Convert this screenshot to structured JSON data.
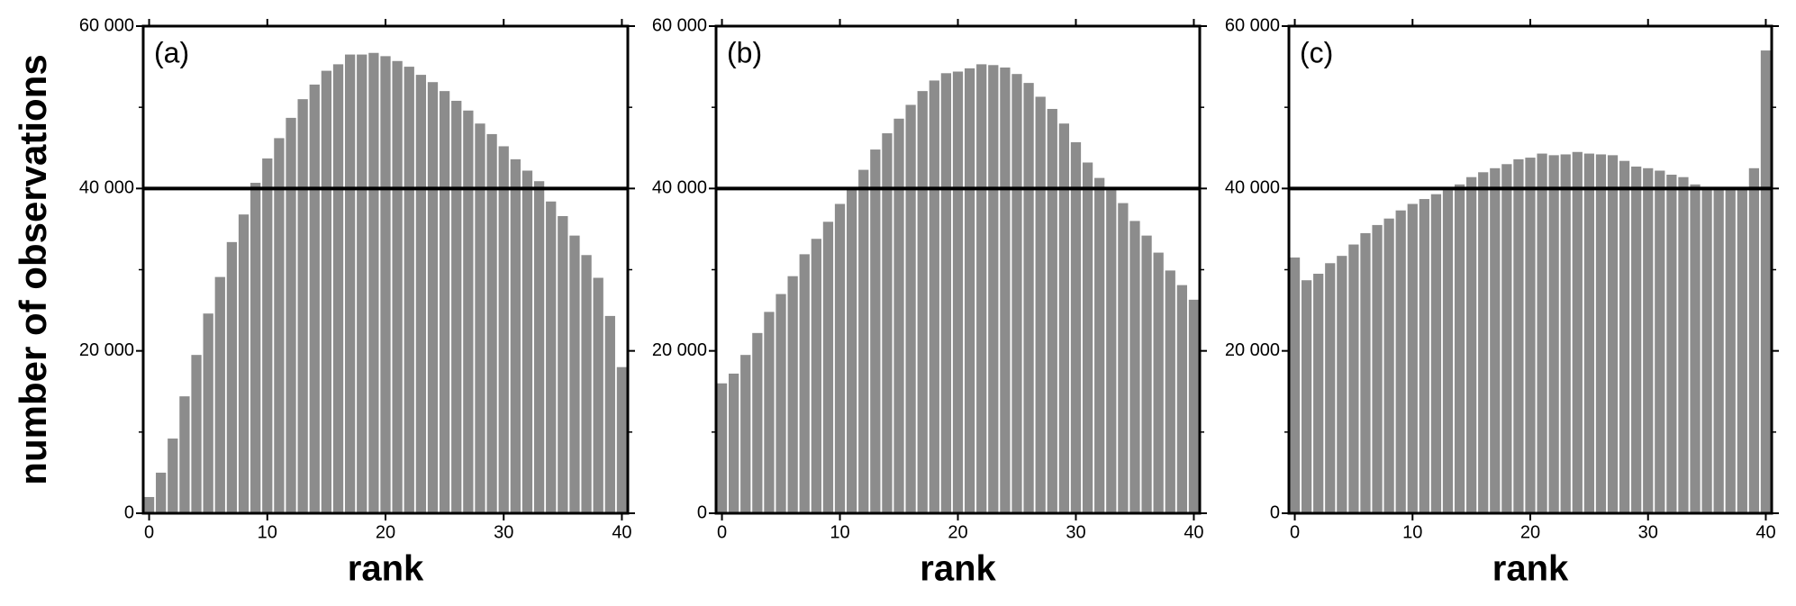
{
  "chart_data": [
    {
      "type": "bar",
      "annotation": "(a)",
      "ylabel": "number of observations",
      "xlabel": "rank",
      "x": [
        0,
        1,
        2,
        3,
        4,
        5,
        6,
        7,
        8,
        9,
        10,
        11,
        12,
        13,
        14,
        15,
        16,
        17,
        18,
        19,
        20,
        21,
        22,
        23,
        24,
        25,
        26,
        27,
        28,
        29,
        30,
        31,
        32,
        33,
        34,
        35,
        36,
        37,
        38,
        39,
        40
      ],
      "values": [
        2000,
        5000,
        9200,
        14400,
        19500,
        24600,
        29100,
        33400,
        36800,
        40700,
        43700,
        46200,
        48700,
        51000,
        52800,
        54500,
        55300,
        56500,
        56500,
        56700,
        56300,
        55700,
        55000,
        54000,
        53100,
        52000,
        50800,
        49600,
        48000,
        46700,
        45200,
        43600,
        42200,
        40900,
        38400,
        36600,
        34200,
        31800,
        29000,
        24300,
        18000
      ],
      "color": "#8c8c8c",
      "hline": 40000,
      "xlim": [
        -0.5,
        40.5
      ],
      "xticks": [
        0,
        10,
        20,
        30,
        40
      ],
      "ylim": [
        0,
        60000
      ],
      "yticks": [
        0,
        {
          "value": 20000,
          "label": "20 000"
        },
        {
          "value": 40000,
          "label": "40 000"
        },
        {
          "value": 60000,
          "label": "60 000"
        }
      ]
    },
    {
      "type": "bar",
      "annotation": "(b)",
      "xlabel": "rank",
      "x": [
        0,
        1,
        2,
        3,
        4,
        5,
        6,
        7,
        8,
        9,
        10,
        11,
        12,
        13,
        14,
        15,
        16,
        17,
        18,
        19,
        20,
        21,
        22,
        23,
        24,
        25,
        26,
        27,
        28,
        29,
        30,
        31,
        32,
        33,
        34,
        35,
        36,
        37,
        38,
        39,
        40
      ],
      "values": [
        16000,
        17200,
        19500,
        22200,
        24800,
        27000,
        29200,
        31900,
        33800,
        35900,
        38100,
        40200,
        42300,
        44800,
        46800,
        48600,
        50300,
        52000,
        53300,
        54200,
        54400,
        54800,
        55300,
        55200,
        54900,
        54100,
        53000,
        51300,
        49800,
        48000,
        45700,
        43200,
        41300,
        39800,
        38200,
        36000,
        34200,
        32100,
        29900,
        28100,
        26300
      ],
      "color": "#8c8c8c",
      "hline": 40000,
      "xlim": [
        -0.5,
        40.5
      ],
      "xticks": [
        0,
        10,
        20,
        30,
        40
      ],
      "ylim": [
        0,
        60000
      ],
      "yticks": [
        0,
        {
          "value": 20000,
          "label": "20 000"
        },
        {
          "value": 40000,
          "label": "40 000"
        },
        {
          "value": 60000,
          "label": "60 000"
        }
      ]
    },
    {
      "type": "bar",
      "annotation": "(c)",
      "xlabel": "rank",
      "x": [
        0,
        1,
        2,
        3,
        4,
        5,
        6,
        7,
        8,
        9,
        10,
        11,
        12,
        13,
        14,
        15,
        16,
        17,
        18,
        19,
        20,
        21,
        22,
        23,
        24,
        25,
        26,
        27,
        28,
        29,
        30,
        31,
        32,
        33,
        34,
        35,
        36,
        37,
        38,
        39,
        40
      ],
      "values": [
        31500,
        28700,
        29500,
        30800,
        31700,
        33100,
        34500,
        35500,
        36300,
        37300,
        38100,
        38700,
        39300,
        39800,
        40500,
        41400,
        42000,
        42500,
        43000,
        43600,
        43800,
        44300,
        44100,
        44200,
        44500,
        44300,
        44200,
        44100,
        43400,
        42700,
        42500,
        42200,
        41700,
        41400,
        40500,
        40200,
        40000,
        39900,
        40100,
        42500,
        57000
      ],
      "color": "#8c8c8c",
      "hline": 40000,
      "xlim": [
        -0.5,
        40.5
      ],
      "xticks": [
        0,
        10,
        20,
        30,
        40
      ],
      "ylim": [
        0,
        60000
      ],
      "yticks": [
        0,
        {
          "value": 20000,
          "label": "20 000"
        },
        {
          "value": 40000,
          "label": "40 000"
        },
        {
          "value": 60000,
          "label": "60 000"
        }
      ]
    }
  ]
}
